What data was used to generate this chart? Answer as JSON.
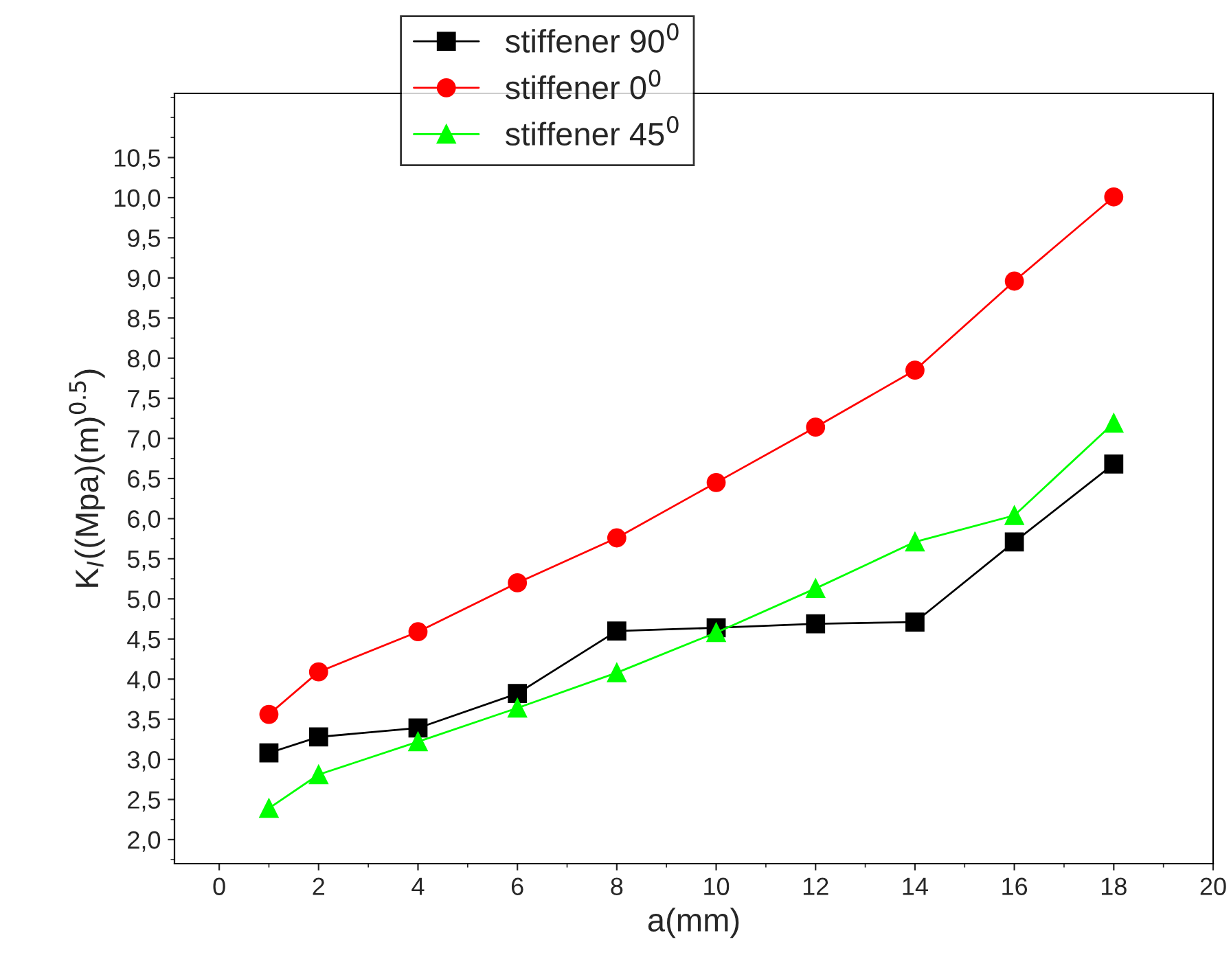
{
  "chart_data": {
    "type": "line",
    "xlabel": "a(mm)",
    "ylabel": "K$_{I}$((Mpa)(m)$^{0.5}$)",
    "x": [
      1,
      2,
      4,
      6,
      8,
      10,
      12,
      14,
      16,
      18
    ],
    "series": [
      {
        "name": "stiffener 90$^{0}$",
        "color": "#000000",
        "marker": "square",
        "values": [
          3.08,
          3.28,
          3.39,
          3.82,
          4.6,
          4.64,
          4.69,
          4.71,
          5.71,
          6.68
        ]
      },
      {
        "name": "stiffener 0$^{0}$",
        "color": "#ff0000",
        "marker": "circle",
        "values": [
          3.56,
          4.09,
          4.59,
          5.2,
          5.76,
          6.45,
          7.14,
          7.85,
          8.96,
          10.01
        ]
      },
      {
        "name": "stiffener 45$^{0}$",
        "color": "#00ff00",
        "marker": "triangle",
        "values": [
          2.39,
          2.81,
          3.22,
          3.64,
          4.08,
          4.58,
          5.13,
          5.71,
          6.04,
          7.19
        ]
      }
    ],
    "xlim": [
      -0.9,
      20
    ],
    "xticks": [
      0,
      2,
      4,
      6,
      8,
      10,
      12,
      14,
      16,
      18,
      20
    ],
    "ylim": [
      1.7,
      11.3
    ],
    "yticks": [
      {
        "value": 2.0,
        "label": "2,0"
      },
      {
        "value": 2.5,
        "label": "2,5"
      },
      {
        "value": 3.0,
        "label": "3,0"
      },
      {
        "value": 3.5,
        "label": "3,5"
      },
      {
        "value": 4.0,
        "label": "4,0"
      },
      {
        "value": 4.5,
        "label": "4,5"
      },
      {
        "value": 5.0,
        "label": "5,0"
      },
      {
        "value": 5.5,
        "label": "5,5"
      },
      {
        "value": 6.0,
        "label": "6,0"
      },
      {
        "value": 6.5,
        "label": "6,5"
      },
      {
        "value": 7.0,
        "label": "7,0"
      },
      {
        "value": 7.5,
        "label": "7,5"
      },
      {
        "value": 8.0,
        "label": "8,0"
      },
      {
        "value": 8.5,
        "label": "8,5"
      },
      {
        "value": 9.0,
        "label": "9,0"
      },
      {
        "value": 9.5,
        "label": "9,5"
      },
      {
        "value": 10.0,
        "label": "10,0"
      },
      {
        "value": 10.5,
        "label": "10,5"
      }
    ],
    "grid": false,
    "legend": "top",
    "line_style": "solid"
  }
}
